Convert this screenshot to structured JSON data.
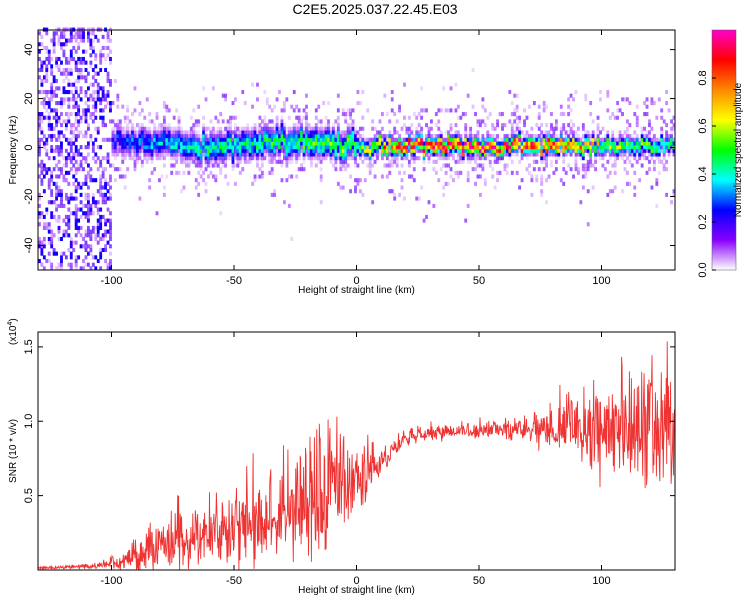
{
  "title": "C2E5.2025.037.22.45.E03",
  "colors": {
    "snr_line": "#ee3333"
  },
  "chart_data": [
    {
      "type": "heatmap",
      "xlabel": "Height of straight line (km)",
      "ylabel": "Frequency (Hz)",
      "xlim": [
        -130,
        130
      ],
      "ylim": [
        -50,
        48
      ],
      "x_ticks": [
        -100,
        -50,
        0,
        50,
        100
      ],
      "y_ticks": [
        -40,
        -20,
        0,
        20,
        40
      ],
      "colorbar": {
        "label": "Normalized spectral amplitude",
        "range": [
          0,
          1
        ],
        "ticks": [
          "0.0",
          "0.2",
          "0.4",
          "0.6",
          "0.8"
        ],
        "colormap": [
          "#ffffff",
          "#8800ff",
          "#0000ff",
          "#00ffff",
          "#00ff00",
          "#ffff00",
          "#ff8800",
          "#ff0000",
          "#ff00cc"
        ]
      },
      "ridge": {
        "x": [
          -100,
          -80,
          -60,
          -40,
          -20,
          0,
          20,
          40,
          60,
          80,
          100,
          120,
          130
        ],
        "center_freq": [
          2,
          1,
          -1,
          1,
          2,
          0,
          0,
          0,
          0,
          0,
          0,
          0,
          0
        ],
        "peak_amplitude": [
          0.25,
          0.35,
          0.45,
          0.45,
          0.5,
          0.55,
          0.95,
          0.95,
          0.9,
          0.85,
          0.6,
          0.5,
          0.45
        ]
      }
    },
    {
      "type": "line",
      "xlabel": "Height of straight line (km)",
      "ylabel": "SNR (10 * v/v)",
      "y_multiplier": "(x10",
      "y_multiplier_exp": "4",
      "y_multiplier_close": ")",
      "xlim": [
        -130,
        130
      ],
      "ylim": [
        0,
        1.6
      ],
      "x_ticks": [
        -100,
        -50,
        0,
        50,
        100
      ],
      "y_ticks": [
        "0.5",
        "1.0",
        "1.5"
      ],
      "y_tick_values": [
        0.5,
        1.0,
        1.5
      ],
      "series": [
        {
          "x": [
            -130,
            -115,
            -105,
            -95,
            -85,
            -75,
            -65,
            -55,
            -45,
            -35,
            -25,
            -15,
            -10,
            -5,
            0,
            5,
            10,
            15,
            20,
            30,
            40,
            50,
            60,
            70,
            80,
            90,
            100,
            110,
            120,
            130
          ],
          "y": [
            0.01,
            0.02,
            0.03,
            0.06,
            0.12,
            0.17,
            0.22,
            0.26,
            0.3,
            0.34,
            0.38,
            0.42,
            0.5,
            0.55,
            0.58,
            0.65,
            0.72,
            0.82,
            0.88,
            0.92,
            0.93,
            0.93,
            0.94,
            0.94,
            0.95,
            0.95,
            0.93,
            0.9,
            0.88,
            0.9
          ],
          "spread": [
            0.005,
            0.01,
            0.015,
            0.04,
            0.1,
            0.12,
            0.15,
            0.17,
            0.18,
            0.2,
            0.22,
            0.25,
            0.28,
            0.22,
            0.15,
            0.12,
            0.08,
            0.05,
            0.04,
            0.03,
            0.03,
            0.03,
            0.04,
            0.05,
            0.1,
            0.14,
            0.2,
            0.26,
            0.28,
            0.25
          ]
        }
      ]
    }
  ]
}
